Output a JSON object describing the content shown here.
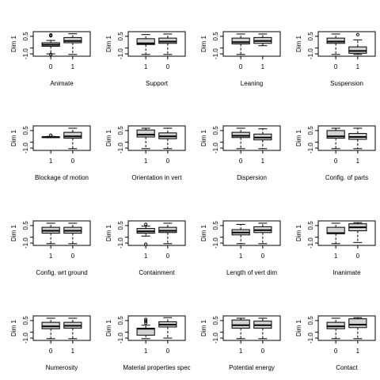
{
  "colors": {
    "box_fill": "#d3d3d3",
    "stroke": "#000000",
    "background": "#ffffff"
  },
  "chart_data": {
    "type": "boxplot",
    "layout": "4x4 grid of small multiples",
    "ylabel": "Dim 1",
    "ylim": [
      -1.2,
      0.9
    ],
    "yticks": [
      0.5,
      -0.5,
      -1.0
    ],
    "ytick_labels": [
      "0.5",
      "",
      "-1.0"
    ],
    "grid": false,
    "legend": "none",
    "panels": [
      {
        "xlabel": "Animate",
        "categories": [
          "0",
          "1"
        ],
        "boxes": [
          {
            "whisker_low": -1.0,
            "q1": -0.35,
            "median": -0.22,
            "q3": -0.05,
            "whisker_high": 0.15,
            "outliers": [
              0.55,
              0.62,
              -1.05
            ]
          },
          {
            "whisker_low": -1.05,
            "q1": -0.05,
            "median": 0.1,
            "q3": 0.4,
            "whisker_high": 0.72,
            "outliers": []
          }
        ]
      },
      {
        "xlabel": "Support",
        "categories": [
          "1",
          "0"
        ],
        "boxes": [
          {
            "whisker_low": -1.05,
            "q1": -0.2,
            "median": -0.1,
            "q3": 0.3,
            "whisker_high": 0.65,
            "outliers": []
          },
          {
            "whisker_low": -1.05,
            "q1": -0.1,
            "median": 0.05,
            "q3": 0.35,
            "whisker_high": 0.7,
            "outliers": []
          }
        ]
      },
      {
        "xlabel": "Leaning",
        "categories": [
          "0",
          "1"
        ],
        "boxes": [
          {
            "whisker_low": -1.05,
            "q1": -0.15,
            "median": 0.0,
            "q3": 0.35,
            "whisker_high": 0.7,
            "outliers": []
          },
          {
            "whisker_low": -0.3,
            "q1": -0.1,
            "median": 0.1,
            "q3": 0.4,
            "whisker_high": 0.7,
            "outliers": []
          }
        ]
      },
      {
        "xlabel": "Suspension",
        "categories": [
          "0",
          "1"
        ],
        "boxes": [
          {
            "whisker_low": -1.05,
            "q1": -0.1,
            "median": 0.05,
            "q3": 0.35,
            "whisker_high": 0.7,
            "outliers": []
          },
          {
            "whisker_low": -1.05,
            "q1": -0.95,
            "median": -0.75,
            "q3": -0.4,
            "whisker_high": 0.2,
            "outliers": [
              0.65
            ]
          }
        ]
      },
      {
        "xlabel": "Blockage of motion",
        "categories": [
          "1",
          "0"
        ],
        "boxes": [
          {
            "whisker_low": -0.1,
            "q1": -0.08,
            "median": -0.06,
            "q3": -0.04,
            "whisker_high": 0.0,
            "outliers": [
              0.1
            ]
          },
          {
            "whisker_low": -1.05,
            "q1": -0.15,
            "median": 0.0,
            "q3": 0.35,
            "whisker_high": 0.7,
            "outliers": []
          }
        ]
      },
      {
        "xlabel": "Orientation in vert",
        "categories": [
          "1",
          "0"
        ],
        "boxes": [
          {
            "whisker_low": -1.05,
            "q1": -0.05,
            "median": 0.15,
            "q3": 0.55,
            "whisker_high": 0.7,
            "outliers": []
          },
          {
            "whisker_low": -1.05,
            "q1": -0.2,
            "median": 0.0,
            "q3": 0.3,
            "whisker_high": 0.7,
            "outliers": []
          }
        ]
      },
      {
        "xlabel": "Dispersion",
        "categories": [
          "0",
          "1"
        ],
        "boxes": [
          {
            "whisker_low": -1.05,
            "q1": -0.1,
            "median": 0.05,
            "q3": 0.35,
            "whisker_high": 0.7,
            "outliers": []
          },
          {
            "whisker_low": -1.05,
            "q1": -0.3,
            "median": -0.1,
            "q3": 0.2,
            "whisker_high": 0.65,
            "outliers": []
          }
        ]
      },
      {
        "xlabel": "Config. of parts",
        "categories": [
          "0",
          "1"
        ],
        "boxes": [
          {
            "whisker_low": -1.05,
            "q1": -0.15,
            "median": 0.0,
            "q3": 0.5,
            "whisker_high": 0.7,
            "outliers": []
          },
          {
            "whisker_low": -1.05,
            "q1": -0.25,
            "median": -0.05,
            "q3": 0.25,
            "whisker_high": 0.7,
            "outliers": []
          }
        ]
      },
      {
        "xlabel": "Config. wrt ground",
        "categories": [
          "1",
          "0"
        ],
        "boxes": [
          {
            "whisker_low": -1.05,
            "q1": -0.15,
            "median": 0.05,
            "q3": 0.35,
            "whisker_high": 0.7,
            "outliers": []
          },
          {
            "whisker_low": -1.05,
            "q1": -0.15,
            "median": 0.05,
            "q3": 0.35,
            "whisker_high": 0.7,
            "outliers": []
          }
        ]
      },
      {
        "xlabel": "Containment",
        "categories": [
          "1",
          "0"
        ],
        "boxes": [
          {
            "whisker_low": -0.4,
            "q1": -0.15,
            "median": 0.0,
            "q3": 0.25,
            "whisker_high": 0.45,
            "outliers": [
              0.6,
              -1.1
            ]
          },
          {
            "whisker_low": -1.05,
            "q1": -0.1,
            "median": 0.05,
            "q3": 0.35,
            "whisker_high": 0.7,
            "outliers": []
          }
        ]
      },
      {
        "xlabel": "Length of vert dim",
        "categories": [
          "1",
          "0"
        ],
        "boxes": [
          {
            "whisker_low": -1.05,
            "q1": -0.3,
            "median": -0.1,
            "q3": 0.15,
            "whisker_high": 0.6,
            "outliers": []
          },
          {
            "whisker_low": -1.05,
            "q1": -0.1,
            "median": 0.1,
            "q3": 0.4,
            "whisker_high": 0.7,
            "outliers": []
          }
        ]
      },
      {
        "xlabel": "Inanimate",
        "categories": [
          "1",
          "0"
        ],
        "boxes": [
          {
            "whisker_low": -1.05,
            "q1": -0.2,
            "median": -0.15,
            "q3": 0.35,
            "whisker_high": 0.7,
            "outliers": []
          },
          {
            "whisker_low": -0.95,
            "q1": 0.05,
            "median": 0.35,
            "q3": 0.65,
            "whisker_high": 0.75,
            "outliers": []
          }
        ]
      },
      {
        "xlabel": "Numerosity",
        "categories": [
          "0",
          "1"
        ],
        "boxes": [
          {
            "whisker_low": -1.05,
            "q1": -0.2,
            "median": 0.0,
            "q3": 0.35,
            "whisker_high": 0.7,
            "outliers": []
          },
          {
            "whisker_low": -1.05,
            "q1": -0.15,
            "median": 0.05,
            "q3": 0.35,
            "whisker_high": 0.7,
            "outliers": []
          }
        ]
      },
      {
        "xlabel": "Material properties spec",
        "categories": [
          "1",
          "0"
        ],
        "boxes": [
          {
            "whisker_low": -1.05,
            "q1": -0.75,
            "median": -0.2,
            "q3": -0.15,
            "whisker_high": 0.1,
            "outliers": [
              0.3,
              0.45,
              0.6
            ]
          },
          {
            "whisker_low": -1.0,
            "q1": -0.05,
            "median": 0.15,
            "q3": 0.4,
            "whisker_high": 0.75,
            "outliers": []
          }
        ]
      },
      {
        "xlabel": "Potential energy",
        "categories": [
          "1",
          "0"
        ],
        "boxes": [
          {
            "whisker_low": -1.05,
            "q1": -0.15,
            "median": 0.1,
            "q3": 0.55,
            "whisker_high": 0.7,
            "outliers": []
          },
          {
            "whisker_low": -1.05,
            "q1": -0.15,
            "median": 0.1,
            "q3": 0.45,
            "whisker_high": 0.7,
            "outliers": []
          }
        ]
      },
      {
        "xlabel": "Contact",
        "categories": [
          "0",
          "1"
        ],
        "boxes": [
          {
            "whisker_low": -1.05,
            "q1": -0.2,
            "median": 0.0,
            "q3": 0.35,
            "whisker_high": 0.7,
            "outliers": []
          },
          {
            "whisker_low": -1.05,
            "q1": -0.1,
            "median": 0.15,
            "q3": 0.65,
            "whisker_high": 0.75,
            "outliers": []
          }
        ]
      }
    ]
  }
}
